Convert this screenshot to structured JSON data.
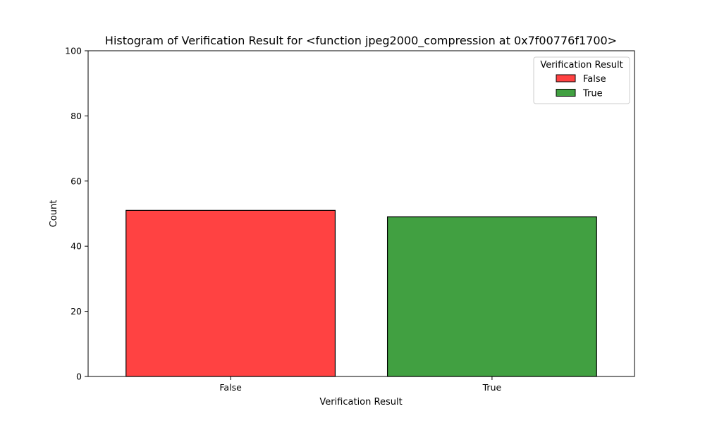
{
  "chart_data": {
    "type": "bar",
    "title": "Histogram of Verification Result for <function jpeg2000_compression at 0x7f00776f1700>",
    "xlabel": "Verification Result",
    "ylabel": "Count",
    "categories": [
      "False",
      "True"
    ],
    "values": [
      51,
      49
    ],
    "colors": [
      "#ff4242",
      "#41a041"
    ],
    "ylim": [
      0,
      100
    ],
    "yticks": [
      0,
      20,
      40,
      60,
      80,
      100
    ],
    "grid": false,
    "legend": {
      "title": "Verification Result",
      "placement": "top-right",
      "entries": [
        {
          "label": "False",
          "color": "#ff4242"
        },
        {
          "label": "True",
          "color": "#41a041"
        }
      ]
    }
  }
}
